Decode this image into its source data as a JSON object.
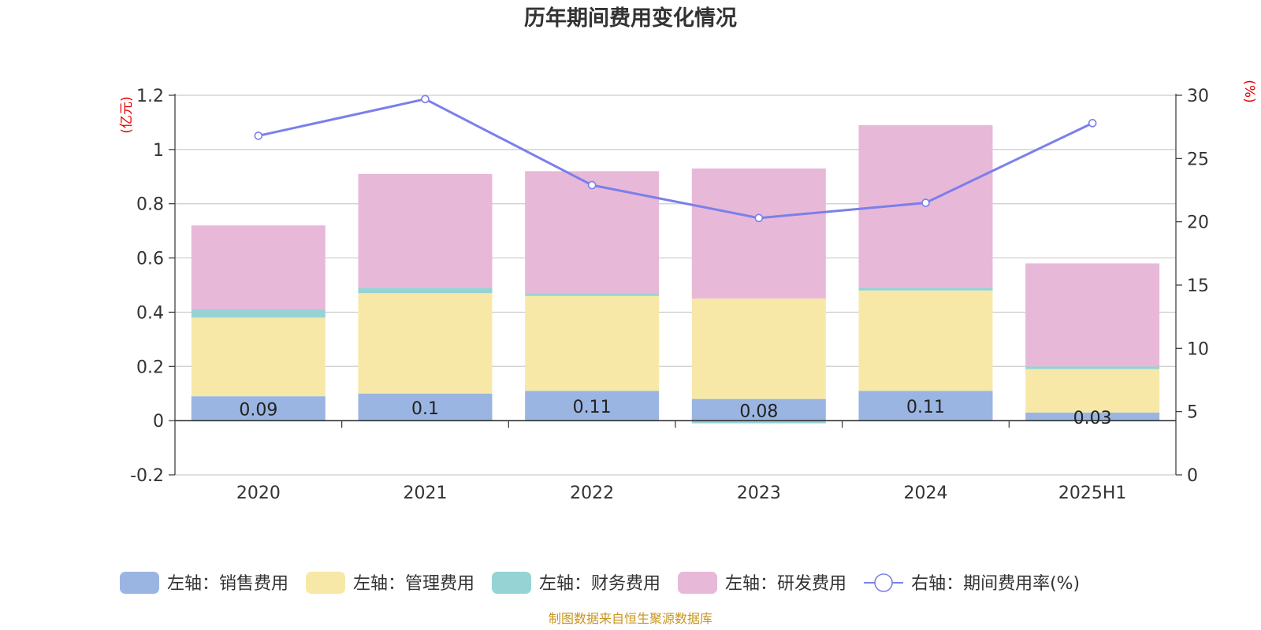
{
  "chart_data": {
    "type": "bar",
    "title": "历年期间费用变化情况",
    "categories": [
      "2020",
      "2021",
      "2022",
      "2023",
      "2024",
      "2025H1"
    ],
    "left_axis": {
      "unit": "(亿元)",
      "ylim": [
        -0.2,
        1.2
      ],
      "ticks": [
        "1.2",
        "1",
        "0.8",
        "0.6",
        "0.4",
        "0.2",
        "0",
        "-0.2"
      ]
    },
    "right_axis": {
      "unit": "(%)",
      "ylim": [
        0,
        30
      ],
      "ticks": [
        "30",
        "25",
        "20",
        "15",
        "10",
        "5",
        "0"
      ]
    },
    "series": [
      {
        "name": "左轴：销售费用",
        "type": "stacked-bar",
        "axis": "left",
        "color": "#9bb5e2",
        "values": [
          0.09,
          0.1,
          0.11,
          0.08,
          0.11,
          0.03
        ],
        "data_labels": [
          "0.09",
          "0.1",
          "0.11",
          "0.08",
          "0.11",
          "0.03"
        ]
      },
      {
        "name": "左轴：管理费用",
        "type": "stacked-bar",
        "axis": "left",
        "color": "#f8e8a8",
        "values": [
          0.29,
          0.37,
          0.35,
          0.37,
          0.37,
          0.16
        ]
      },
      {
        "name": "左轴：财务费用",
        "type": "stacked-bar",
        "axis": "left",
        "color": "#96d3d5",
        "values": [
          0.03,
          0.02,
          0.01,
          -0.01,
          0.01,
          0.01
        ]
      },
      {
        "name": "左轴：研发费用",
        "type": "stacked-bar",
        "axis": "left",
        "color": "#e8b8d8",
        "values": [
          0.31,
          0.42,
          0.45,
          0.48,
          0.6,
          0.38
        ]
      },
      {
        "name": "右轴：期间费用率(%)",
        "type": "line",
        "axis": "right",
        "color": "#7b7fea",
        "values": [
          26.8,
          29.7,
          22.9,
          20.3,
          21.5,
          27.8
        ]
      }
    ],
    "grid": true,
    "legend_position": "bottom"
  },
  "footer": "制图数据来自恒生聚源数据库"
}
